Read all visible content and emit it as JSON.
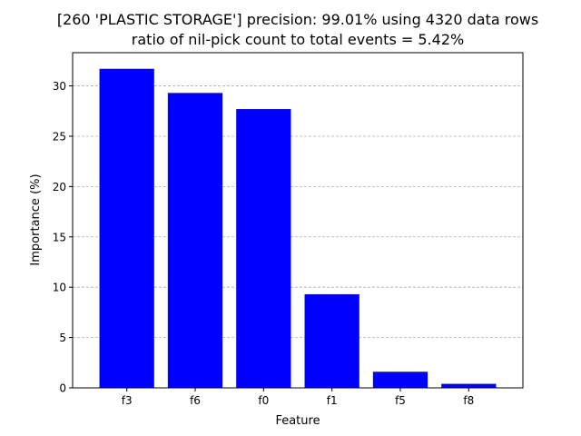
{
  "chart_data": {
    "type": "bar",
    "title_line1": "[260 'PLASTIC STORAGE'] precision: 99.01% using 4320 data rows",
    "title_line2": "ratio of nil-pick count to total events = 5.42%",
    "xlabel": "Feature",
    "ylabel": "Importance (%)",
    "categories": [
      "f3",
      "f6",
      "f0",
      "f1",
      "f5",
      "f8"
    ],
    "values": [
      31.7,
      29.3,
      27.7,
      9.3,
      1.6,
      0.4
    ],
    "ylim": [
      0,
      33.3
    ],
    "yticks": [
      "0",
      "5",
      "10",
      "15",
      "20",
      "25",
      "30"
    ],
    "grid": "y-dashed",
    "bar_color": "#0000ff"
  }
}
